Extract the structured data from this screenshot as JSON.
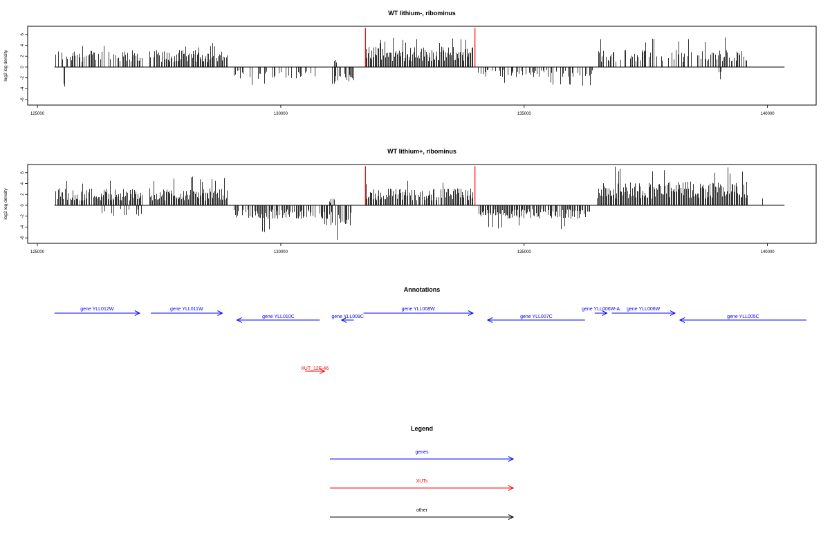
{
  "chart_data": [
    {
      "type": "bar",
      "title": "WT lithium-, ribominus",
      "ylabel": "log2 log density",
      "xlabel": "",
      "xlim": [
        124800,
        141000
      ],
      "ylim": [
        -7,
        7.5
      ],
      "xticks": [
        125000,
        130000,
        135000,
        140000
      ],
      "yticks": [
        6,
        4,
        2,
        0,
        -2,
        -4,
        -6
      ],
      "baseline_range": [
        125350,
        140350
      ],
      "grid": false,
      "series": [
        {
          "color": "#000000",
          "profile": "per-position bar density on + (up) and - (down) strands",
          "segments": [
            {
              "start": 125350,
              "end": 127150,
              "strand": "+",
              "typical": 2.5,
              "max": 4.5,
              "density": 0.6
            },
            {
              "start": 125540,
              "end": 125570,
              "strand": "-",
              "typical": -3.5,
              "max": -3.6,
              "density": 1
            },
            {
              "start": 127300,
              "end": 128900,
              "strand": "+",
              "typical": 2.5,
              "max": 4.5,
              "density": 0.9
            },
            {
              "start": 129000,
              "end": 130700,
              "strand": "-",
              "typical": -1.8,
              "max": -3.3,
              "density": 0.4
            },
            {
              "start": 131050,
              "end": 131500,
              "strand": "-",
              "typical": -2.5,
              "max": -5.2,
              "density": 0.7
            },
            {
              "start": 131100,
              "end": 131150,
              "strand": "+",
              "typical": 1.2,
              "max": 1.5,
              "density": 1
            },
            {
              "start": 131750,
              "end": 133950,
              "strand": "+",
              "typical": 3.0,
              "max": 5.5,
              "density": 1.0
            },
            {
              "start": 134050,
              "end": 136400,
              "strand": "-",
              "typical": -1.5,
              "max": -3.5,
              "density": 0.45
            },
            {
              "start": 136500,
              "end": 139600,
              "strand": "+",
              "typical": 2.5,
              "max": 5.5,
              "density": 0.5
            },
            {
              "start": 139000,
              "end": 139050,
              "strand": "-",
              "typical": -2.4,
              "max": -2.5,
              "density": 1
            }
          ]
        },
        {
          "color": "#ff0000",
          "bars": [
            {
              "x": 131740,
              "y": 7.2
            },
            {
              "x": 133990,
              "y": 7.2
            }
          ]
        }
      ]
    },
    {
      "type": "bar",
      "title": "WT lithium+, ribominus",
      "ylabel": "log2 log density",
      "xlabel": "",
      "xlim": [
        124800,
        141000
      ],
      "ylim": [
        -7,
        7.5
      ],
      "xticks": [
        125000,
        130000,
        135000,
        140000
      ],
      "yticks": [
        6,
        4,
        2,
        0,
        -2,
        -4,
        -6
      ],
      "baseline_range": [
        125350,
        140350
      ],
      "grid": false,
      "series": [
        {
          "color": "#000000",
          "profile": "per-position bar density on + (up) and - (down) strands",
          "segments": [
            {
              "start": 125350,
              "end": 127150,
              "strand": "+",
              "typical": 2.5,
              "max": 4.5,
              "density": 0.9
            },
            {
              "start": 126300,
              "end": 127150,
              "strand": "-",
              "typical": -1.8,
              "max": -2.8,
              "density": 0.25
            },
            {
              "start": 127300,
              "end": 128900,
              "strand": "+",
              "typical": 2.5,
              "max": 5.3,
              "density": 1.0
            },
            {
              "start": 129000,
              "end": 130700,
              "strand": "-",
              "typical": -2.0,
              "max": -5.5,
              "density": 0.8
            },
            {
              "start": 130800,
              "end": 131450,
              "strand": "-",
              "typical": -3.0,
              "max": -6.5,
              "density": 0.9
            },
            {
              "start": 130950,
              "end": 131100,
              "strand": "+",
              "typical": 1.0,
              "max": 1.3,
              "density": 0.5
            },
            {
              "start": 131750,
              "end": 133950,
              "strand": "+",
              "typical": 2.5,
              "max": 4.5,
              "density": 0.9
            },
            {
              "start": 134050,
              "end": 136350,
              "strand": "-",
              "typical": -2.0,
              "max": -4.5,
              "density": 0.9
            },
            {
              "start": 136500,
              "end": 139600,
              "strand": "+",
              "typical": 3.5,
              "max": 7.2,
              "density": 1.0
            },
            {
              "start": 139850,
              "end": 140050,
              "strand": "+",
              "typical": 2.0,
              "max": 2.2,
              "density": 0.2
            }
          ]
        },
        {
          "color": "#ff0000",
          "bars": [
            {
              "x": 131740,
              "y": 7.2
            },
            {
              "x": 133990,
              "y": 7.2
            }
          ]
        }
      ]
    }
  ],
  "annotations": {
    "title": "Annotations",
    "genes": [
      {
        "label": "gene YLL012W",
        "start": 125350,
        "end": 127100,
        "strand": "+",
        "row": 0
      },
      {
        "label": "gene YLL011W",
        "start": 127330,
        "end": 128800,
        "strand": "+",
        "row": 0
      },
      {
        "label": "gene YLL010C",
        "start": 129100,
        "end": 130800,
        "strand": "-",
        "row": 1
      },
      {
        "label": "gene YLL009C",
        "start": 131250,
        "end": 131500,
        "strand": "-",
        "row": 1
      },
      {
        "label": "gene YLL008W",
        "start": 131700,
        "end": 133950,
        "strand": "+",
        "row": 0
      },
      {
        "label": "gene YLL007C",
        "start": 134250,
        "end": 136250,
        "strand": "-",
        "row": 1
      },
      {
        "label": "gene YLL006W-A",
        "start": 136450,
        "end": 136700,
        "strand": "+",
        "row": 0
      },
      {
        "label": "gene YLL006W",
        "start": 136800,
        "end": 138100,
        "strand": "+",
        "row": 0
      },
      {
        "label": "gene YLL005C",
        "start": 138200,
        "end": 140800,
        "strand": "-",
        "row": 1
      }
    ],
    "xuts": [
      {
        "label": "XUT_12F-46",
        "start": 130500,
        "end": 130900,
        "strand": "+"
      }
    ]
  },
  "legend": {
    "title": "Legend",
    "items": [
      {
        "label": "genes",
        "color": "#0000ff"
      },
      {
        "label": "XUTs",
        "color": "#ff0000"
      },
      {
        "label": "other",
        "color": "#000000"
      }
    ]
  },
  "colors": {
    "gene": "#0000ff",
    "xut": "#ff0000",
    "other": "#000000"
  }
}
